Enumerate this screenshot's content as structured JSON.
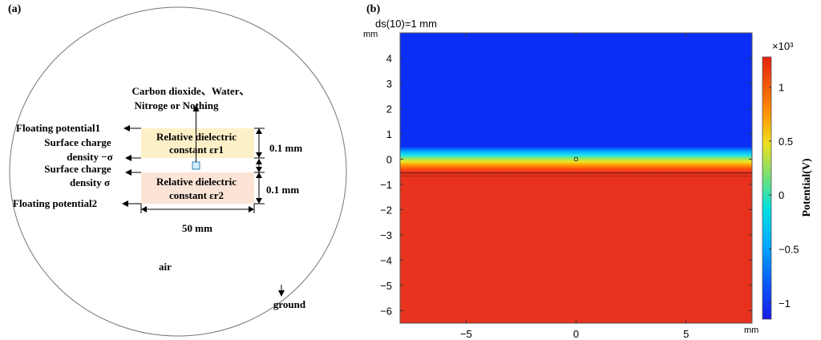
{
  "panel_a": {
    "label": "(a)",
    "gas_label_line1": "Carbon dioxide、Water、",
    "gas_label_line2": "Nitroge or Nothing",
    "floating1": "Floating potential1",
    "surface_neg_line1": "Surface charge",
    "surface_neg_line2": "density −σ",
    "surface_pos_line1": "Surface charge",
    "surface_pos_line2": "density σ",
    "floating2": "Floating potential2",
    "diel1_line1": "Relative dielectric",
    "diel1_line2": "constant εr1",
    "diel2_line1": "Relative dielectric",
    "diel2_line2": "constant εr2",
    "dim_top": "0.1 mm",
    "dim_bottom": "0.1 mm",
    "dim_width": "50 mm",
    "air": "air",
    "ground": "ground"
  },
  "panel_b": {
    "label": "(b)",
    "title": "ds(10)=1 mm",
    "y_unit": "mm",
    "x_unit": "mm",
    "colorbar_exponent": "×10³",
    "colorbar_label": "Potential(V)",
    "colors": {
      "high": "#e8321e",
      "low": "#0a2ef5"
    }
  },
  "chart_data": {
    "type": "heatmap",
    "title": "ds(10)=1 mm",
    "xlabel": "mm",
    "ylabel": "mm",
    "xlim": [
      -8,
      8
    ],
    "ylim": [
      -6.5,
      5
    ],
    "x_ticks": [
      -5,
      0,
      5
    ],
    "y_ticks": [
      4,
      3,
      2,
      1,
      0,
      -1,
      -2,
      -3,
      -4,
      -5,
      -6
    ],
    "field": "Potential",
    "unit": "V",
    "colorbar_scale": 1000,
    "colorbar_range": [
      -1.15,
      1.28
    ],
    "colorbar_ticks": [
      1,
      0.5,
      0,
      -0.5,
      -1
    ],
    "value_above": -1.08,
    "value_below": 1.18,
    "transition_y": [
      0.5,
      -0.55
    ]
  }
}
